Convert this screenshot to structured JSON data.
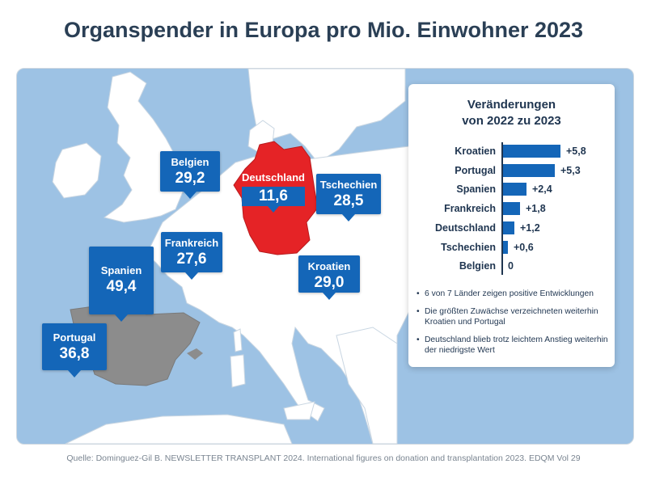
{
  "title": "Organspender in Europa pro Mio. Einwohner 2023",
  "callouts": [
    {
      "country": "Belgien",
      "value": "29,2"
    },
    {
      "country": "Deutschland",
      "value": "11,6"
    },
    {
      "country": "Tschechien",
      "value": "28,5"
    },
    {
      "country": "Frankreich",
      "value": "27,6"
    },
    {
      "country": "Spanien",
      "value": "49,4"
    },
    {
      "country": "Kroatien",
      "value": "29,0"
    },
    {
      "country": "Portugal",
      "value": "36,8"
    }
  ],
  "colors": {
    "sea": "#9dc2e4",
    "land": "#ffffff",
    "germany": "#e52326",
    "iberia": "#8c8c8c",
    "callout": "#1466b8",
    "text_dark": "#1f3550"
  },
  "panel": {
    "title_line1": "Veränderungen",
    "title_line2": "von 2022 zu 2023",
    "notes": [
      "6 von 7 Länder zeigen positive Entwicklungen",
      "Die größten Zuwächse verzeichneten weiterhin Kroatien und Portugal",
      "Deutschland blieb trotz leichtem Anstieg weiterhin der niedrigste Wert"
    ]
  },
  "chart_data": [
    {
      "type": "map",
      "title": "Organspender in Europa pro Mio. Einwohner 2023",
      "categories": [
        "Belgien",
        "Deutschland",
        "Tschechien",
        "Frankreich",
        "Spanien",
        "Kroatien",
        "Portugal"
      ],
      "values": [
        29.2,
        11.6,
        28.5,
        27.6,
        49.4,
        29.0,
        36.8
      ]
    },
    {
      "type": "bar",
      "orientation": "horizontal",
      "title": "Veränderungen von 2022 zu 2023",
      "categories": [
        "Kroatien",
        "Portugal",
        "Spanien",
        "Frankreich",
        "Deutschland",
        "Tschechien",
        "Belgien"
      ],
      "values": [
        5.8,
        5.3,
        2.4,
        1.8,
        1.2,
        0.6,
        0
      ],
      "value_labels": [
        "+5,8",
        "+5,3",
        "+2,4",
        "+1,8",
        "+1,2",
        "+0,6",
        "0"
      ],
      "xlim": [
        0,
        6
      ]
    }
  ],
  "source": "Quelle: Dominguez-Gil B. NEWSLETTER TRANSPLANT 2024. International figures on donation and transplantation 2023. EDQM Vol 29"
}
